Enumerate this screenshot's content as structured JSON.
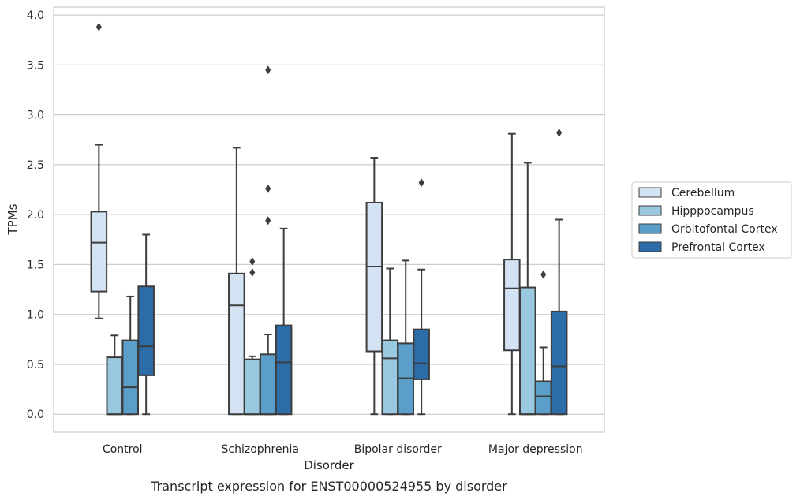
{
  "chart_data": {
    "type": "box",
    "title": "",
    "caption": "Transcript expression for ENST00000524955 by disorder",
    "xlabel": "Disorder",
    "ylabel": "TPMs",
    "ylim": [
      -0.18,
      4.08
    ],
    "yticks": [
      0.0,
      0.5,
      1.0,
      1.5,
      2.0,
      2.5,
      3.0,
      3.5,
      4.0
    ],
    "ytick_labels": [
      "0.0",
      "0.5",
      "1.0",
      "1.5",
      "2.0",
      "2.5",
      "3.0",
      "3.5",
      "4.0"
    ],
    "grid": true,
    "legend_position": "right",
    "categories": [
      "Control",
      "Schizophrenia",
      "Bipolar disorder",
      "Major depression"
    ],
    "series": [
      {
        "name": "Cerebellum",
        "color": "#d3e3f3",
        "boxes": [
          {
            "whislo": 0.96,
            "q1": 1.23,
            "med": 1.72,
            "q3": 2.03,
            "whishi": 2.7,
            "fliers": [
              3.88
            ]
          },
          {
            "whislo": 0.0,
            "q1": 0.0,
            "med": 1.09,
            "q3": 1.41,
            "whishi": 2.67,
            "fliers": []
          },
          {
            "whislo": 0.0,
            "q1": 0.63,
            "med": 1.48,
            "q3": 2.12,
            "whishi": 2.57,
            "fliers": []
          },
          {
            "whislo": 0.0,
            "q1": 0.64,
            "med": 1.26,
            "q3": 1.55,
            "whishi": 2.81,
            "fliers": []
          }
        ]
      },
      {
        "name": "Hipppocampus",
        "color": "#9ac8e0",
        "boxes": [
          {
            "whislo": 0.0,
            "q1": 0.0,
            "med": 0.0,
            "q3": 0.57,
            "whishi": 0.79,
            "fliers": []
          },
          {
            "whislo": 0.0,
            "q1": 0.0,
            "med": 0.0,
            "q3": 0.55,
            "whishi": 0.58,
            "fliers": [
              1.42,
              1.53
            ]
          },
          {
            "whislo": 0.0,
            "q1": 0.0,
            "med": 0.56,
            "q3": 0.74,
            "whishi": 1.46,
            "fliers": []
          },
          {
            "whislo": 0.0,
            "q1": 0.0,
            "med": 0.0,
            "q3": 1.27,
            "whishi": 2.52,
            "fliers": []
          }
        ]
      },
      {
        "name": "Orbitofontal Cortex",
        "color": "#5a9ec9",
        "boxes": [
          {
            "whislo": 0.0,
            "q1": 0.0,
            "med": 0.27,
            "q3": 0.74,
            "whishi": 1.18,
            "fliers": []
          },
          {
            "whislo": 0.0,
            "q1": 0.0,
            "med": 0.0,
            "q3": 0.6,
            "whishi": 0.8,
            "fliers": [
              1.94,
              2.26,
              3.45
            ]
          },
          {
            "whislo": 0.0,
            "q1": 0.0,
            "med": 0.36,
            "q3": 0.71,
            "whishi": 1.54,
            "fliers": []
          },
          {
            "whislo": 0.0,
            "q1": 0.0,
            "med": 0.18,
            "q3": 0.33,
            "whishi": 0.67,
            "fliers": [
              1.4
            ]
          }
        ]
      },
      {
        "name": "Prefrontal Cortex",
        "color": "#2c6ca8",
        "boxes": [
          {
            "whislo": 0.0,
            "q1": 0.39,
            "med": 0.68,
            "q3": 1.28,
            "whishi": 1.8,
            "fliers": []
          },
          {
            "whislo": 0.0,
            "q1": 0.0,
            "med": 0.52,
            "q3": 0.89,
            "whishi": 1.86,
            "fliers": []
          },
          {
            "whislo": 0.0,
            "q1": 0.35,
            "med": 0.51,
            "q3": 0.85,
            "whishi": 1.45,
            "fliers": [
              2.32
            ]
          },
          {
            "whislo": 0.0,
            "q1": 0.0,
            "med": 0.48,
            "q3": 1.03,
            "whishi": 1.95,
            "fliers": [
              2.82
            ]
          }
        ]
      }
    ]
  }
}
